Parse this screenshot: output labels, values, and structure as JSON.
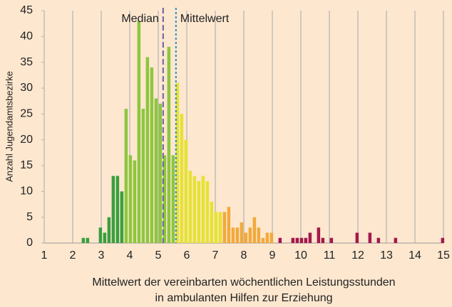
{
  "chart_data": {
    "type": "histogram",
    "ylabel": "Anzahl Jugendamtsbezirke",
    "xlabel": [
      "Mittelwert der vereinbarten wöchentlichen Leistungsstunden",
      "in ambulanten Hilfen zur Erziehung"
    ],
    "bins": [
      2.3,
      2.45,
      2.6,
      2.75,
      2.9,
      3.05,
      3.2,
      3.35,
      3.5,
      3.65,
      3.8,
      3.95,
      4.1,
      4.25,
      4.4,
      4.55,
      4.7,
      4.85,
      5,
      5.15,
      5.3,
      5.45,
      5.6,
      5.75,
      5.9,
      6.05,
      6.2,
      6.35,
      6.5,
      6.65,
      6.8,
      6.95,
      7.1,
      7.25,
      7.4,
      7.55,
      7.7,
      7.85,
      8,
      8.15,
      8.3,
      8.45,
      8.6,
      8.75,
      8.9,
      9.05,
      9.2,
      9.35,
      9.5,
      9.65,
      9.8,
      9.95,
      10.1,
      10.25,
      10.4,
      10.55,
      10.7,
      10.85,
      11,
      11.15,
      11.3,
      11.45,
      11.6,
      11.75,
      11.9,
      12.05,
      12.2,
      12.35,
      12.5,
      12.65,
      12.8,
      12.95,
      13.1,
      13.25,
      13.4,
      13.55,
      13.7,
      13.85,
      14,
      14.15,
      14.3,
      14.45,
      14.6,
      14.75,
      14.9,
      15.05
    ],
    "values": [
      1,
      1,
      0,
      0,
      3,
      2,
      5,
      13,
      13,
      10,
      26,
      17,
      16,
      43,
      26,
      36,
      34,
      28,
      27,
      17,
      38,
      17,
      31,
      25,
      20,
      14,
      13,
      12,
      13,
      12,
      8,
      6,
      6,
      6,
      7,
      3,
      3,
      4,
      2,
      3,
      5,
      3,
      1,
      2,
      2,
      0,
      1,
      0,
      0,
      1,
      1,
      1,
      1,
      2,
      0,
      3,
      1,
      0,
      1,
      0,
      0,
      0,
      0,
      0,
      2,
      0,
      0,
      2,
      0,
      1,
      0,
      0,
      0,
      1,
      0,
      0,
      0,
      0,
      0,
      0,
      0,
      0,
      0,
      0,
      1
    ],
    "colors": [
      "#3a9e3f",
      "#3a9e3f",
      "#3a9e3f",
      "#3a9e3f",
      "#3a9e3f",
      "#3a9e3f",
      "#3a9e3f",
      "#3a9e3f",
      "#3a9e3f",
      "#3a9e3f",
      "#8dc63f",
      "#8dc63f",
      "#8dc63f",
      "#8dc63f",
      "#8dc63f",
      "#8dc63f",
      "#8dc63f",
      "#8dc63f",
      "#8dc63f",
      "#8dc63f",
      "#8dc63f",
      "#8dc63f",
      "#e6e232",
      "#e6e232",
      "#e6e232",
      "#e6e232",
      "#e6e232",
      "#e6e232",
      "#e6e232",
      "#e6e232",
      "#e6e232",
      "#e6e232",
      "#e6e232",
      "#f2a93b",
      "#f2a93b",
      "#f2a93b",
      "#f2a93b",
      "#f2a93b",
      "#f2a93b",
      "#f2a93b",
      "#f2a93b",
      "#f2a93b",
      "#f2a93b",
      "#f2a93b",
      "#f2a93b",
      "#f2a93b",
      "#a3194b",
      "#a3194b",
      "#a3194b",
      "#a3194b",
      "#a3194b",
      "#a3194b",
      "#a3194b",
      "#a3194b",
      "#a3194b",
      "#a3194b",
      "#a3194b",
      "#a3194b",
      "#a3194b",
      "#a3194b",
      "#a3194b",
      "#a3194b",
      "#a3194b",
      "#a3194b",
      "#a3194b",
      "#a3194b",
      "#a3194b",
      "#a3194b",
      "#a3194b",
      "#a3194b",
      "#a3194b",
      "#a3194b",
      "#a3194b",
      "#a3194b",
      "#a3194b",
      "#a3194b",
      "#a3194b",
      "#a3194b",
      "#a3194b",
      "#a3194b",
      "#a3194b",
      "#a3194b",
      "#a3194b",
      "#a3194b",
      "#a3194b"
    ],
    "annotations": [
      {
        "text": "Median",
        "x": 5.17,
        "color": "#6b5fa8",
        "style": "dashed",
        "side": "left"
      },
      {
        "text": "Mittelwert",
        "x": 5.62,
        "color": "#1e90d0",
        "style": "dotted",
        "side": "right"
      }
    ],
    "xlim": [
      1,
      15
    ],
    "xticks": [
      1,
      2,
      3,
      4,
      5,
      6,
      7,
      8,
      9,
      10,
      11,
      12,
      13,
      14,
      15
    ],
    "ylim": [
      0,
      45
    ],
    "yticks": [
      0,
      5,
      10,
      15,
      20,
      25,
      30,
      35,
      40,
      45
    ],
    "grid": "x"
  }
}
